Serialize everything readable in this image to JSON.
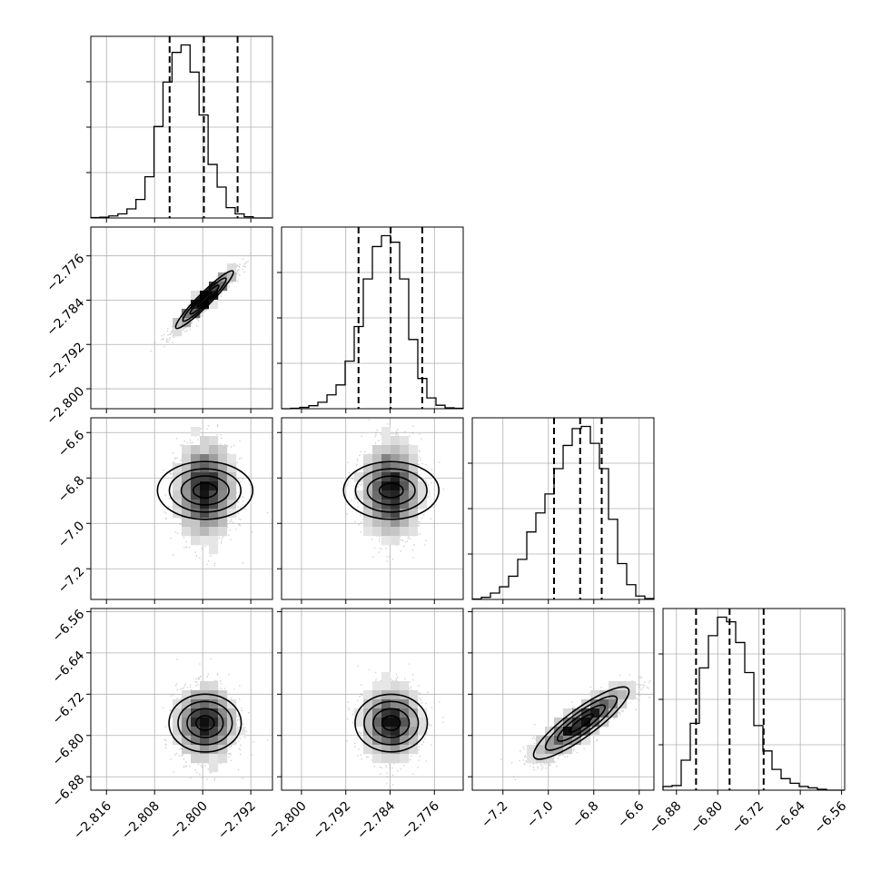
{
  "chart_data": {
    "type": "corner",
    "parameters": 4,
    "grid": true,
    "quantile_lines": "dashed",
    "colors": {
      "line": "#000000",
      "grid": "#b0b0b0",
      "points": "#9a9a9a"
    },
    "ranges": [
      [
        -2.8186,
        -2.7884
      ],
      [
        -2.8036,
        -2.7708
      ],
      [
        -7.335,
        -6.535
      ],
      [
        -6.906,
        -6.554
      ]
    ],
    "ticks": [
      {
        "values": [
          -2.816,
          -2.808,
          -2.8,
          -2.792
        ],
        "labels": [
          "−2.816",
          "−2.808",
          "−2.800",
          "−2.792"
        ]
      },
      {
        "values": [
          -2.8,
          -2.792,
          -2.784,
          -2.776
        ],
        "labels": [
          "−2.800",
          "−2.792",
          "−2.784",
          "−2.776"
        ]
      },
      {
        "values": [
          -7.2,
          -7.0,
          -6.8,
          -6.6
        ],
        "labels": [
          "−7.2",
          "−7.0",
          "−6.8",
          "−6.6"
        ]
      },
      {
        "values": [
          -6.88,
          -6.8,
          -6.72,
          -6.64,
          -6.56
        ],
        "labels": [
          "−6.88",
          "−6.80",
          "−6.72",
          "−6.64",
          "−6.56"
        ]
      }
    ],
    "histograms": [
      {
        "param": 0,
        "bin_edges": [
          -2.8186,
          -2.8171,
          -2.8156,
          -2.8141,
          -2.8126,
          -2.8111,
          -2.8096,
          -2.8081,
          -2.8066,
          -2.8051,
          -2.8036,
          -2.8021,
          -2.8006,
          -2.7991,
          -2.7976,
          -2.7961,
          -2.7946,
          -2.7931,
          -2.7916,
          -2.7901,
          -2.7886
        ],
        "counts": [
          1,
          2,
          5,
          10,
          22,
          45,
          100,
          222,
          330,
          402,
          420,
          354,
          250,
          130,
          75,
          25,
          10,
          3,
          0,
          0
        ],
        "quantiles": [
          -2.8055,
          -2.7998,
          -2.7942
        ]
      },
      {
        "param": 1,
        "bin_edges": [
          -2.8036,
          -2.80196,
          -2.80032,
          -2.79868,
          -2.79704,
          -2.7954,
          -2.79376,
          -2.79212,
          -2.79048,
          -2.78884,
          -2.7872,
          -2.78556,
          -2.78392,
          -2.78228,
          -2.78064,
          -2.779,
          -2.77736,
          -2.77572,
          -2.77408,
          -2.77244,
          -2.7708
        ],
        "counts": [
          0,
          1,
          3,
          7,
          15,
          32,
          55,
          110,
          190,
          300,
          375,
          400,
          385,
          300,
          160,
          70,
          25,
          8,
          2,
          1
        ],
        "quantiles": [
          -2.7897,
          -2.7839,
          -2.7782
        ]
      },
      {
        "param": 2,
        "bin_edges": [
          -7.335,
          -7.295,
          -7.255,
          -7.215,
          -7.175,
          -7.135,
          -7.095,
          -7.055,
          -7.015,
          -6.975,
          -6.935,
          -6.895,
          -6.855,
          -6.815,
          -6.775,
          -6.735,
          -6.695,
          -6.655,
          -6.615,
          -6.575,
          -6.535
        ],
        "counts": [
          1,
          5,
          15,
          30,
          55,
          95,
          160,
          205,
          250,
          310,
          365,
          405,
          410,
          370,
          310,
          190,
          85,
          35,
          8,
          2
        ],
        "quantiles": [
          -6.975,
          -6.86,
          -6.765
        ]
      },
      {
        "param": 3,
        "bin_edges": [
          -6.906,
          -6.8884,
          -6.8708,
          -6.8532,
          -6.8356,
          -6.818,
          -6.8004,
          -6.7828,
          -6.7652,
          -6.7476,
          -6.73,
          -6.7124,
          -6.6948,
          -6.6772,
          -6.6596,
          -6.642,
          -6.6244,
          -6.6068,
          -6.5892,
          -6.5716,
          -6.554
        ],
        "counts": [
          8,
          10,
          65,
          145,
          265,
          335,
          375,
          365,
          320,
          255,
          140,
          85,
          45,
          25,
          15,
          8,
          5,
          2,
          0,
          0
        ],
        "quantiles": [
          -6.842,
          -6.777,
          -6.711
        ]
      }
    ],
    "pairs": [
      {
        "x": 0,
        "y": 1,
        "center": [
          -2.7997,
          -2.7839
        ],
        "spread": [
          0.0024,
          0.0026
        ],
        "correlation": 0.95
      },
      {
        "x": 0,
        "y": 2,
        "center": [
          -2.7996,
          -6.855
        ],
        "spread": [
          0.0024,
          0.105
        ],
        "correlation": 0.0
      },
      {
        "x": 1,
        "y": 2,
        "center": [
          -2.7838,
          -6.855
        ],
        "spread": [
          0.0026,
          0.105
        ],
        "correlation": 0.0
      },
      {
        "x": 0,
        "y": 3,
        "center": [
          -2.7996,
          -6.776
        ],
        "spread": [
          0.0024,
          0.035
        ],
        "correlation": 0.0
      },
      {
        "x": 1,
        "y": 3,
        "center": [
          -2.7838,
          -6.776
        ],
        "spread": [
          0.0026,
          0.035
        ],
        "correlation": 0.0
      },
      {
        "x": 2,
        "y": 3,
        "center": [
          -6.855,
          -6.776
        ],
        "spread": [
          0.105,
          0.035
        ],
        "correlation": 0.88
      }
    ]
  }
}
